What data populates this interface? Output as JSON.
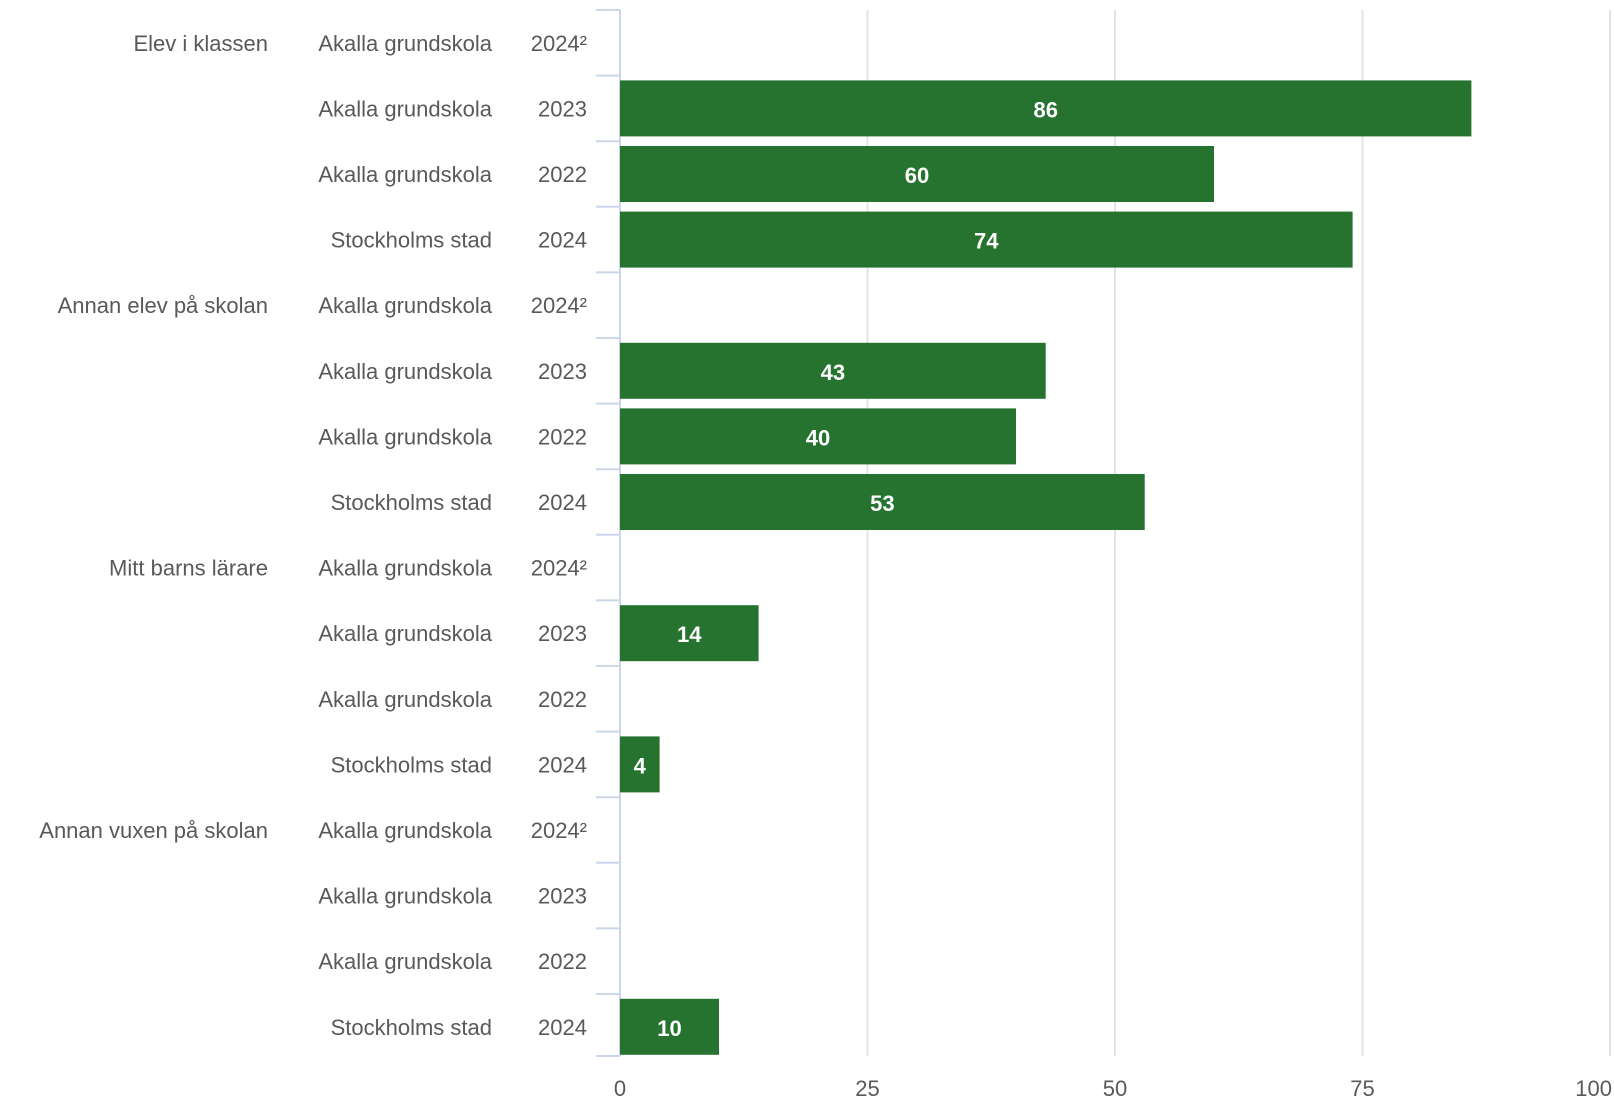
{
  "chart_data": {
    "type": "bar",
    "orientation": "horizontal",
    "bar_color": "#267330",
    "value_label_color": "#ffffff",
    "xlim": [
      0,
      100
    ],
    "xticks": [
      0,
      25,
      50,
      75,
      100
    ],
    "grid": true,
    "groups": [
      {
        "label": "Elev i klassen",
        "rows": [
          {
            "unit": "Akalla grundskola",
            "year": "2024²",
            "value": null
          },
          {
            "unit": "Akalla grundskola",
            "year": "2023",
            "value": 86
          },
          {
            "unit": "Akalla grundskola",
            "year": "2022",
            "value": 60
          },
          {
            "unit": "Stockholms stad",
            "year": "2024",
            "value": 74
          }
        ]
      },
      {
        "label": "Annan elev på skolan",
        "rows": [
          {
            "unit": "Akalla grundskola",
            "year": "2024²",
            "value": null
          },
          {
            "unit": "Akalla grundskola",
            "year": "2023",
            "value": 43
          },
          {
            "unit": "Akalla grundskola",
            "year": "2022",
            "value": 40
          },
          {
            "unit": "Stockholms stad",
            "year": "2024",
            "value": 53
          }
        ]
      },
      {
        "label": "Mitt barns lärare",
        "rows": [
          {
            "unit": "Akalla grundskola",
            "year": "2024²",
            "value": null
          },
          {
            "unit": "Akalla grundskola",
            "year": "2023",
            "value": 14
          },
          {
            "unit": "Akalla grundskola",
            "year": "2022",
            "value": null
          },
          {
            "unit": "Stockholms stad",
            "year": "2024",
            "value": 4
          }
        ]
      },
      {
        "label": "Annan vuxen på skolan",
        "rows": [
          {
            "unit": "Akalla grundskola",
            "year": "2024²",
            "value": null
          },
          {
            "unit": "Akalla grundskola",
            "year": "2023",
            "value": null
          },
          {
            "unit": "Akalla grundskola",
            "year": "2022",
            "value": null
          },
          {
            "unit": "Stockholms stad",
            "year": "2024",
            "value": 10
          }
        ]
      }
    ]
  }
}
